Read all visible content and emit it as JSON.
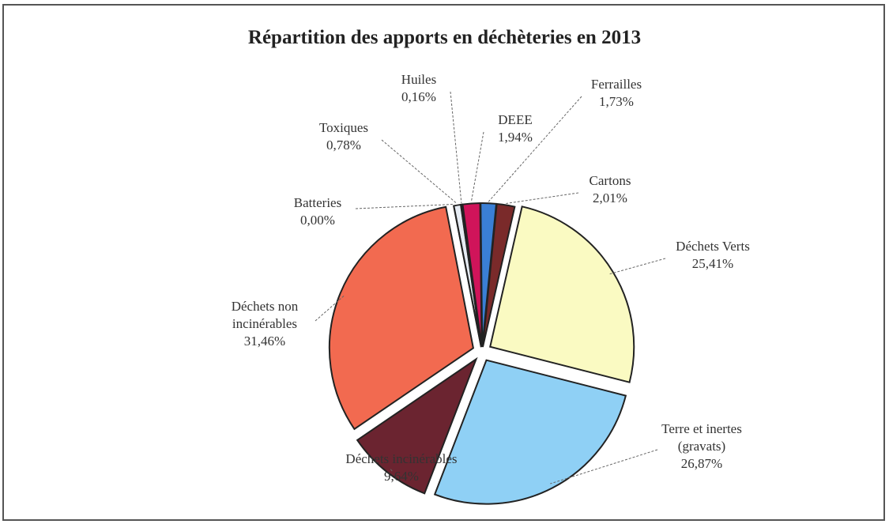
{
  "chart_data": {
    "type": "pie",
    "title": "Répartition des apports en déchèteries en 2013",
    "categories": [
      "Toxiques",
      "Huiles",
      "DEEE",
      "Ferrailles",
      "Cartons",
      "Déchets Verts",
      "Terre et inertes (gravats)",
      "Déchets incinérables",
      "Déchets non incinérables",
      "Batteries"
    ],
    "values": [
      0.78,
      0.16,
      1.94,
      1.73,
      2.01,
      25.41,
      26.87,
      9.64,
      31.46,
      0.0
    ],
    "value_labels": [
      "0,78%",
      "0,16%",
      "1,94%",
      "1,73%",
      "2,01%",
      "25,41%",
      "26,87%",
      "9,64%",
      "31,46%",
      "0,00%"
    ],
    "colors": [
      "#e6ecf4",
      "#f2f2f2",
      "#d0145a",
      "#3a7fd5",
      "#7a2a2a",
      "#fafac2",
      "#8fd0f5",
      "#6b2430",
      "#f26a50",
      "#cccccc"
    ]
  }
}
